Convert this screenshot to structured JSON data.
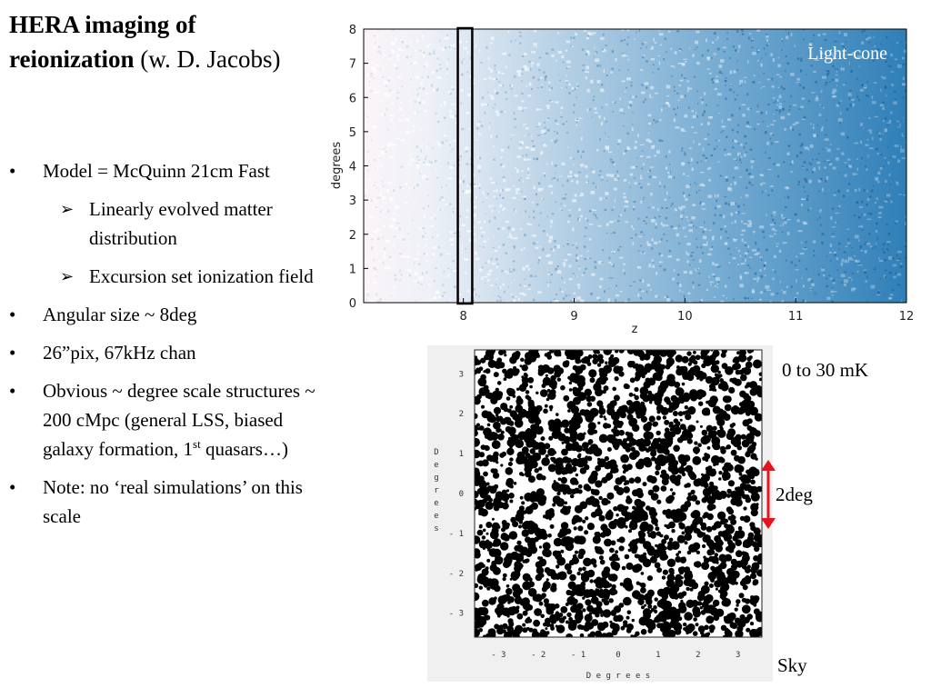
{
  "title": {
    "bold": "HERA imaging of reionization",
    "rest": " (w. D. Jacobs)"
  },
  "bullets": [
    {
      "mark": "•",
      "text": "Model = McQuinn 21cm Fast"
    },
    {
      "mark": "➢",
      "text": "Linearly evolved matter distribution",
      "sub": true
    },
    {
      "mark": "➢",
      "text": "Excursion set ionization field",
      "sub": true
    },
    {
      "mark": "•",
      "text": "Angular size ~ 8deg"
    },
    {
      "mark": "•",
      "text": "26”pix, 67kHz chan"
    },
    {
      "mark": "•",
      "text": "Obvious ~ degree scale structures ~ 200 cMpc (general LSS, biased galaxy formation, 1",
      "sup": "st",
      "after": " quasars…)"
    },
    {
      "mark": "•",
      "text": "Note: no ‘real simulations’ on this scale"
    }
  ],
  "lightcone": {
    "label": "Light-cone",
    "xlabel": "z",
    "ylabel": "degrees",
    "xticks": [
      "8",
      "9",
      "10",
      "11",
      "12"
    ],
    "yticks": [
      "0",
      "1",
      "2",
      "3",
      "4",
      "5",
      "6",
      "7",
      "8"
    ],
    "x_range": [
      7.1,
      12
    ],
    "y_range": [
      0,
      8
    ],
    "highlight_x_range": [
      7.95,
      8.08
    ],
    "colors": {
      "sparse": "#f7eef3",
      "dense": "#2b7bb6"
    }
  },
  "sky": {
    "xlabel": "D e g r e e s",
    "ylabel": "D e g r e e s",
    "xticks": [
      "- 3",
      "- 2",
      "- 1",
      "0",
      "1",
      "2",
      "3"
    ],
    "yticks": [
      "3",
      "2",
      "1",
      "0",
      "- 1",
      "- 2",
      "- 3"
    ],
    "range": [
      -3.6,
      3.6
    ]
  },
  "labels": {
    "temp_range": "0 to 30 mK",
    "scale": "2deg",
    "sky": "Sky"
  },
  "colors": {
    "arrow": "#e8141b"
  }
}
